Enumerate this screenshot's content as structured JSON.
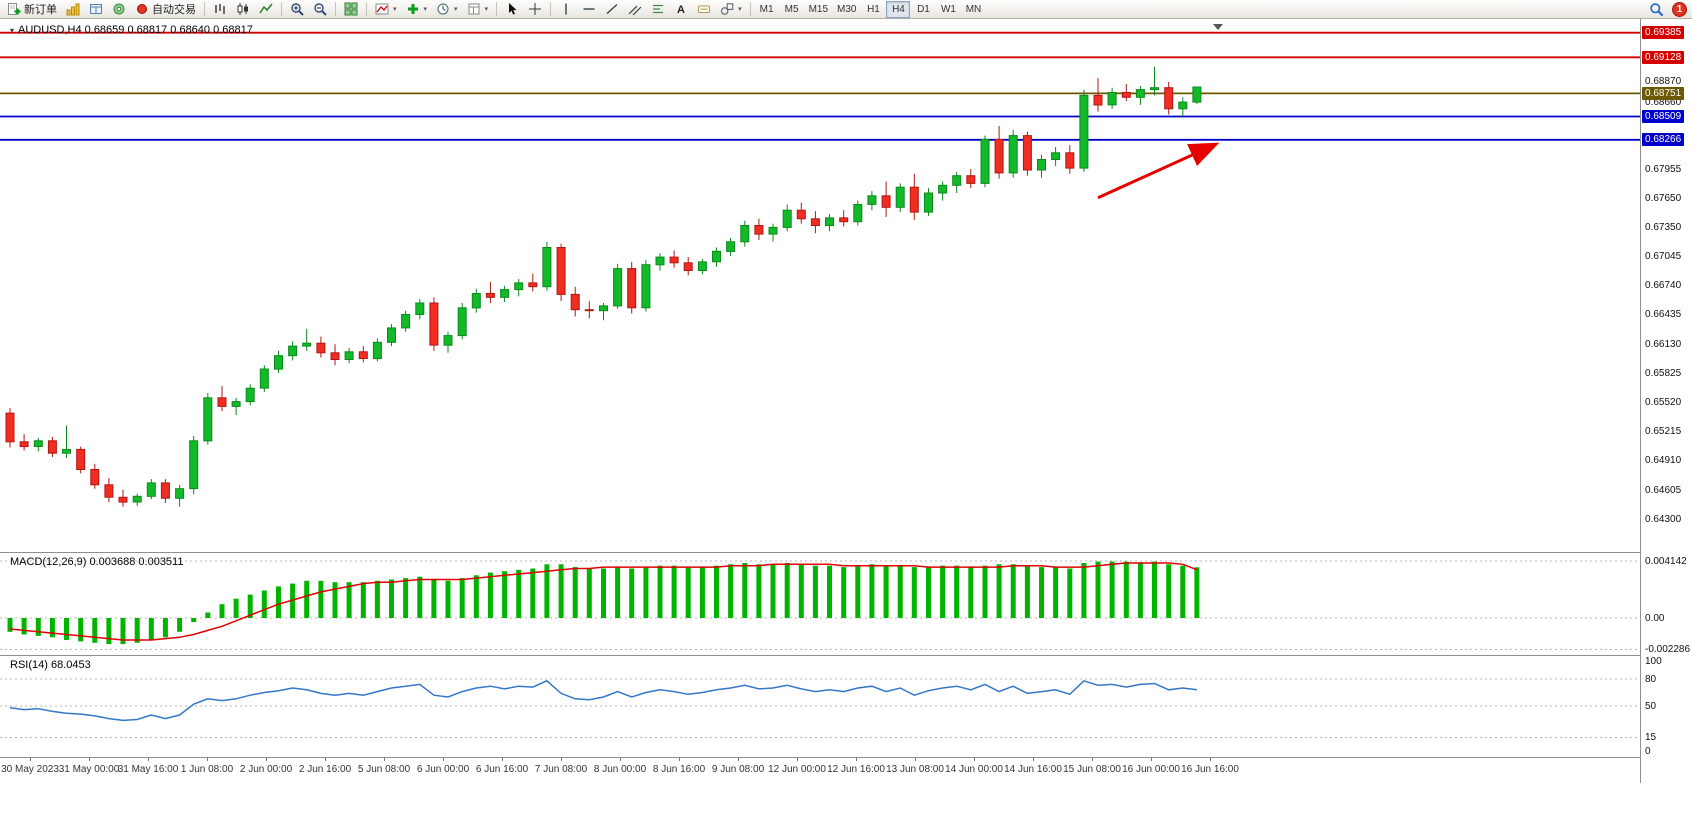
{
  "toolbar": {
    "new_order": "新订单",
    "auto_trading": "自动交易",
    "timeframes": [
      "M1",
      "M5",
      "M15",
      "M30",
      "H1",
      "H4",
      "D1",
      "W1",
      "MN"
    ],
    "active_timeframe": "H4",
    "notification_count": "1"
  },
  "chart": {
    "title": "AUDUSD,H4 0.68659 0.68817 0.68640 0.68817",
    "symbol": "AUDUSD",
    "period": "H4",
    "open": "0.68659",
    "high": "0.68817",
    "low": "0.68640",
    "close": "0.68817"
  },
  "chart_data": {
    "type": "candlestick",
    "symbol": "AUDUSD",
    "timeframe": "H4",
    "up_color": "#12b928",
    "up_border": "#0a8a1c",
    "down_color": "#ef2d22",
    "down_border": "#b01712",
    "price_ticks": [
      "0.68870",
      "0.68660",
      "0.67955",
      "0.67650",
      "0.67350",
      "0.67045",
      "0.66740",
      "0.66435",
      "0.66130",
      "0.65825",
      "0.65520",
      "0.65215",
      "0.64910",
      "0.64605",
      "0.64300"
    ],
    "levels": [
      {
        "label": "0.69385",
        "value": 0.69385,
        "color": "#d40000"
      },
      {
        "label": "0.69128",
        "value": 0.69128,
        "color": "#d40000"
      },
      {
        "label": "0.68751",
        "value": 0.68751,
        "color": "#6b5900"
      },
      {
        "label": "0.68509",
        "value": 0.68509,
        "color": "#0000c8"
      },
      {
        "label": "0.68266",
        "value": 0.68266,
        "color": "#0000c8"
      }
    ],
    "candles": [
      [
        0.6541,
        0.6546,
        0.6505,
        0.6511
      ],
      [
        0.6511,
        0.6519,
        0.6502,
        0.6506
      ],
      [
        0.6506,
        0.6515,
        0.6501,
        0.6512
      ],
      [
        0.6512,
        0.6516,
        0.6495,
        0.6499
      ],
      [
        0.6499,
        0.6528,
        0.6494,
        0.6503
      ],
      [
        0.6503,
        0.6506,
        0.6478,
        0.6482
      ],
      [
        0.6482,
        0.6488,
        0.6462,
        0.6466
      ],
      [
        0.6466,
        0.6473,
        0.6448,
        0.6453
      ],
      [
        0.6453,
        0.6461,
        0.6443,
        0.6448
      ],
      [
        0.6448,
        0.6457,
        0.6444,
        0.6454
      ],
      [
        0.6454,
        0.6472,
        0.6451,
        0.6468
      ],
      [
        0.6468,
        0.6472,
        0.6447,
        0.6452
      ],
      [
        0.6452,
        0.6466,
        0.6443,
        0.6462
      ],
      [
        0.6462,
        0.6517,
        0.6456,
        0.6512
      ],
      [
        0.6512,
        0.6562,
        0.6508,
        0.6557
      ],
      [
        0.6557,
        0.6569,
        0.6543,
        0.6548
      ],
      [
        0.6548,
        0.6557,
        0.6539,
        0.6553
      ],
      [
        0.6553,
        0.6571,
        0.6549,
        0.6567
      ],
      [
        0.6567,
        0.6591,
        0.6563,
        0.6587
      ],
      [
        0.6587,
        0.6606,
        0.6583,
        0.6601
      ],
      [
        0.6601,
        0.6616,
        0.6596,
        0.6611
      ],
      [
        0.6611,
        0.6629,
        0.6606,
        0.6614
      ],
      [
        0.6614,
        0.6621,
        0.6599,
        0.6604
      ],
      [
        0.6604,
        0.6613,
        0.6591,
        0.6597
      ],
      [
        0.6597,
        0.6609,
        0.6593,
        0.6605
      ],
      [
        0.6605,
        0.6611,
        0.6594,
        0.6598
      ],
      [
        0.6598,
        0.6619,
        0.6595,
        0.6615
      ],
      [
        0.6615,
        0.6634,
        0.6611,
        0.663
      ],
      [
        0.663,
        0.6648,
        0.6626,
        0.6644
      ],
      [
        0.6644,
        0.666,
        0.6639,
        0.6656
      ],
      [
        0.6656,
        0.6662,
        0.6606,
        0.6612
      ],
      [
        0.6612,
        0.6626,
        0.6604,
        0.6622
      ],
      [
        0.6622,
        0.6656,
        0.6618,
        0.6651
      ],
      [
        0.6651,
        0.6671,
        0.6646,
        0.6666
      ],
      [
        0.6666,
        0.6678,
        0.6656,
        0.6662
      ],
      [
        0.6662,
        0.6674,
        0.6657,
        0.667
      ],
      [
        0.667,
        0.6681,
        0.6663,
        0.6677
      ],
      [
        0.6677,
        0.6687,
        0.6668,
        0.6673
      ],
      [
        0.6673,
        0.672,
        0.6669,
        0.6714
      ],
      [
        0.6714,
        0.6718,
        0.6658,
        0.6665
      ],
      [
        0.6665,
        0.6673,
        0.6642,
        0.6649
      ],
      [
        0.6649,
        0.6658,
        0.664,
        0.6648
      ],
      [
        0.6648,
        0.6656,
        0.6638,
        0.6653
      ],
      [
        0.6653,
        0.6697,
        0.665,
        0.6692
      ],
      [
        0.6692,
        0.6699,
        0.6645,
        0.6651
      ],
      [
        0.6651,
        0.6701,
        0.6647,
        0.6696
      ],
      [
        0.6696,
        0.6708,
        0.669,
        0.6704
      ],
      [
        0.6704,
        0.6711,
        0.6693,
        0.6698
      ],
      [
        0.6698,
        0.6704,
        0.6685,
        0.669
      ],
      [
        0.669,
        0.6702,
        0.6686,
        0.6699
      ],
      [
        0.6699,
        0.6714,
        0.6694,
        0.671
      ],
      [
        0.671,
        0.6724,
        0.6705,
        0.672
      ],
      [
        0.672,
        0.6742,
        0.6715,
        0.6737
      ],
      [
        0.6737,
        0.6744,
        0.6722,
        0.6728
      ],
      [
        0.6728,
        0.6739,
        0.672,
        0.6735
      ],
      [
        0.6735,
        0.6759,
        0.6731,
        0.6753
      ],
      [
        0.6753,
        0.6761,
        0.6739,
        0.6744
      ],
      [
        0.6744,
        0.6752,
        0.6729,
        0.6737
      ],
      [
        0.6737,
        0.6749,
        0.6731,
        0.6745
      ],
      [
        0.6745,
        0.6753,
        0.6736,
        0.6741
      ],
      [
        0.6741,
        0.6763,
        0.6737,
        0.6759
      ],
      [
        0.6759,
        0.6773,
        0.6753,
        0.6768
      ],
      [
        0.6768,
        0.6783,
        0.6746,
        0.6756
      ],
      [
        0.6756,
        0.6781,
        0.6751,
        0.6777
      ],
      [
        0.6777,
        0.6791,
        0.6743,
        0.6751
      ],
      [
        0.6751,
        0.6776,
        0.6747,
        0.6771
      ],
      [
        0.6771,
        0.6783,
        0.6763,
        0.6779
      ],
      [
        0.6779,
        0.6793,
        0.6771,
        0.6789
      ],
      [
        0.6789,
        0.6796,
        0.6776,
        0.6781
      ],
      [
        0.6781,
        0.6831,
        0.6777,
        0.6827
      ],
      [
        0.6827,
        0.6841,
        0.6786,
        0.6792
      ],
      [
        0.6792,
        0.6837,
        0.6787,
        0.6831
      ],
      [
        0.6831,
        0.6835,
        0.6789,
        0.6795
      ],
      [
        0.6795,
        0.6811,
        0.6787,
        0.6806
      ],
      [
        0.6806,
        0.6819,
        0.6799,
        0.6813
      ],
      [
        0.6813,
        0.6821,
        0.6791,
        0.6797
      ],
      [
        0.6797,
        0.6879,
        0.6793,
        0.6873
      ],
      [
        0.6873,
        0.6891,
        0.6856,
        0.6863
      ],
      [
        0.6863,
        0.6881,
        0.6859,
        0.6876
      ],
      [
        0.6876,
        0.6885,
        0.6867,
        0.6871
      ],
      [
        0.6871,
        0.6883,
        0.6863,
        0.6879
      ],
      [
        0.6879,
        0.6903,
        0.6873,
        0.6881
      ],
      [
        0.6881,
        0.6887,
        0.6853,
        0.6859
      ],
      [
        0.6859,
        0.6871,
        0.6851,
        0.6866
      ],
      [
        0.68659,
        0.68817,
        0.6864,
        0.68817
      ]
    ],
    "annotations": [
      {
        "type": "arrow",
        "from_index": 77,
        "from_price": 0.6766,
        "to_index": 85.2,
        "to_price": 0.6821,
        "color": "#e60000"
      }
    ],
    "macd": {
      "label": "MACD(12,26,9) 0.003688 0.003511",
      "name": "MACD(12,26,9)",
      "current_main": "0.003688",
      "current_signal": "0.003511",
      "scale": [
        "0.004142",
        "0.00",
        "-0.002286"
      ],
      "histogram_color": "#00b400",
      "signal_color": "#e00000",
      "main": [
        -0.001,
        -0.0012,
        -0.0013,
        -0.0014,
        -0.0016,
        -0.0017,
        -0.0018,
        -0.0019,
        -0.0019,
        -0.0018,
        -0.0016,
        -0.0014,
        -0.001,
        -0.0003,
        0.0004,
        0.001,
        0.0014,
        0.0017,
        0.002,
        0.0023,
        0.0025,
        0.0027,
        0.0027,
        0.0026,
        0.0026,
        0.0026,
        0.0027,
        0.0028,
        0.0029,
        0.003,
        0.0028,
        0.0027,
        0.0029,
        0.0031,
        0.0033,
        0.0034,
        0.0035,
        0.0036,
        0.0039,
        0.0039,
        0.0037,
        0.0036,
        0.0036,
        0.0037,
        0.0036,
        0.0037,
        0.0038,
        0.0038,
        0.0037,
        0.0037,
        0.0038,
        0.0039,
        0.004,
        0.0039,
        0.0039,
        0.004,
        0.0039,
        0.0038,
        0.0038,
        0.0037,
        0.0038,
        0.0039,
        0.0038,
        0.0038,
        0.0037,
        0.0037,
        0.0038,
        0.0038,
        0.0037,
        0.0038,
        0.0039,
        0.0039,
        0.0038,
        0.0037,
        0.0037,
        0.0036,
        0.004,
        0.0041,
        0.0041,
        0.0041,
        0.004,
        0.0041,
        0.0039,
        0.0038,
        0.003688
      ],
      "signal": [
        -0.0008,
        -0.0009,
        -0.001,
        -0.0011,
        -0.0012,
        -0.0013,
        -0.0014,
        -0.0015,
        -0.0016,
        -0.0016,
        -0.0016,
        -0.0015,
        -0.0014,
        -0.0012,
        -0.0009,
        -0.0006,
        -0.0002,
        0.0002,
        0.0006,
        0.001,
        0.0013,
        0.0016,
        0.0019,
        0.0021,
        0.0023,
        0.0025,
        0.0026,
        0.0026,
        0.0027,
        0.0028,
        0.0028,
        0.0028,
        0.0028,
        0.0029,
        0.003,
        0.0031,
        0.0032,
        0.0033,
        0.0034,
        0.0035,
        0.0036,
        0.0036,
        0.0037,
        0.0037,
        0.0037,
        0.0037,
        0.0037,
        0.0037,
        0.0037,
        0.0037,
        0.0037,
        0.0038,
        0.0038,
        0.0038,
        0.0039,
        0.0039,
        0.0039,
        0.0039,
        0.0039,
        0.0038,
        0.0038,
        0.0038,
        0.0038,
        0.0038,
        0.0038,
        0.0037,
        0.0037,
        0.0037,
        0.0037,
        0.0037,
        0.0037,
        0.0038,
        0.0038,
        0.0038,
        0.0037,
        0.0037,
        0.0037,
        0.0038,
        0.0039,
        0.004,
        0.004,
        0.004,
        0.004,
        0.0039,
        0.003511
      ]
    },
    "rsi": {
      "label": "RSI(14) 68.0453",
      "name": "RSI(14)",
      "current": "68.0453",
      "levels": [
        "100",
        "80",
        "50",
        "15",
        "0"
      ],
      "line_color": "#3377c9",
      "values": [
        48,
        46,
        47,
        44,
        42,
        41,
        39,
        36,
        34,
        35,
        40,
        36,
        40,
        52,
        58,
        56,
        58,
        62,
        65,
        67,
        70,
        68,
        64,
        62,
        64,
        62,
        66,
        70,
        72,
        74,
        62,
        60,
        66,
        70,
        72,
        69,
        72,
        71,
        78,
        64,
        58,
        57,
        60,
        66,
        60,
        65,
        68,
        66,
        63,
        65,
        68,
        70,
        73,
        69,
        70,
        73,
        69,
        66,
        68,
        66,
        70,
        72,
        66,
        70,
        62,
        67,
        70,
        72,
        68,
        74,
        66,
        72,
        64,
        66,
        68,
        63,
        78,
        73,
        74,
        71,
        74,
        75,
        68,
        70,
        68.0453
      ]
    },
    "time_labels": [
      "30 May 2023",
      "31 May 00:00",
      "31 May 16:00",
      "1 Jun 08:00",
      "2 Jun 00:00",
      "2 Jun 16:00",
      "5 Jun 08:00",
      "6 Jun 00:00",
      "6 Jun 16:00",
      "7 Jun 08:00",
      "8 Jun 00:00",
      "8 Jun 16:00",
      "9 Jun 08:00",
      "12 Jun 00:00",
      "12 Jun 16:00",
      "13 Jun 08:00",
      "14 Jun 00:00",
      "14 Jun 16:00",
      "15 Jun 08:00",
      "16 Jun 00:00",
      "16 Jun 16:00"
    ]
  }
}
